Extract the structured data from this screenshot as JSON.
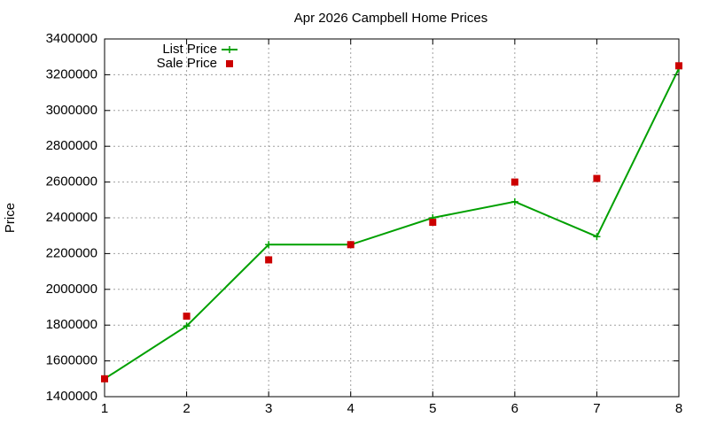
{
  "chart_data": {
    "type": "line",
    "title": "Apr 2026 Campbell Home Prices",
    "y_label": "Price",
    "x": [
      1,
      2,
      3,
      4,
      5,
      6,
      7,
      8
    ],
    "series": [
      {
        "name": "List Price",
        "color": "#00a000",
        "marker": "plus",
        "values": [
          1500000,
          1795000,
          2250000,
          2250000,
          2400000,
          2490000,
          2295000,
          3235000
        ]
      },
      {
        "name": "Sale Price",
        "color": "#cc0000",
        "marker": "square",
        "values": [
          1500000,
          1850000,
          2165000,
          2250000,
          2375000,
          2600000,
          2620000,
          3250000
        ]
      }
    ],
    "xlim": [
      1,
      8
    ],
    "xticks": [
      1,
      2,
      3,
      4,
      5,
      6,
      7,
      8
    ],
    "ylim": [
      1400000,
      3400000
    ],
    "yticks": [
      1400000,
      1600000,
      1800000,
      2000000,
      2200000,
      2400000,
      2600000,
      2800000,
      3000000,
      3200000,
      3400000
    ],
    "grid": true,
    "legend": "top-left"
  }
}
